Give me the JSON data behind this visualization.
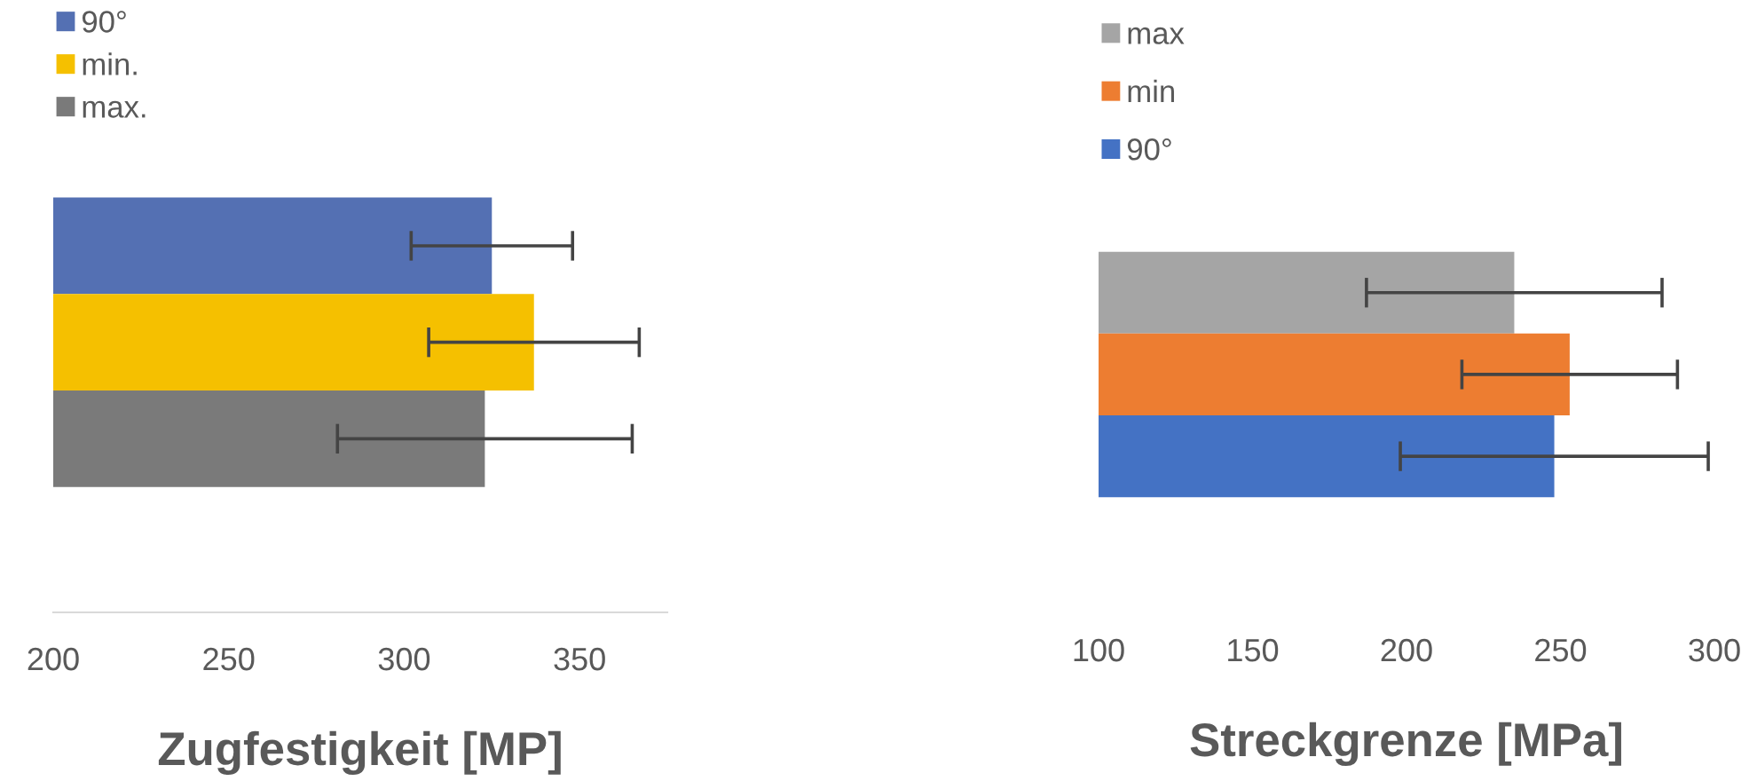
{
  "chart_data": [
    {
      "type": "bar",
      "orientation": "horizontal",
      "xlabel": "Zugfestigkeit [MP]",
      "categories": [
        null
      ],
      "xlim": [
        200,
        375
      ],
      "xticks": [
        200,
        250,
        300,
        350
      ],
      "grid": false,
      "legend": "top left",
      "series": [
        {
          "name": "90°",
          "color": "#5470b3",
          "values": [
            325
          ],
          "errors": [
            23
          ]
        },
        {
          "name": "min.",
          "color": "#f5c000",
          "values": [
            337
          ],
          "errors": [
            30
          ]
        },
        {
          "name": "max.",
          "color": "#7a7a7a",
          "values": [
            323
          ],
          "errors": [
            42
          ]
        }
      ]
    },
    {
      "type": "bar",
      "orientation": "horizontal",
      "xlabel": "Streckgrenze [MPa]",
      "categories": [
        null
      ],
      "xlim": [
        100,
        300
      ],
      "xticks": [
        100,
        150,
        200,
        250,
        300
      ],
      "grid": false,
      "legend": "top left",
      "series": [
        {
          "name": "max",
          "color": "#a5a5a5",
          "values": [
            235
          ],
          "errors": [
            48
          ]
        },
        {
          "name": "min",
          "color": "#ed7d31",
          "values": [
            253
          ],
          "errors": [
            35
          ]
        },
        {
          "name": "90°",
          "color": "#4472c4",
          "values": [
            248
          ],
          "errors": [
            50
          ]
        }
      ]
    }
  ]
}
